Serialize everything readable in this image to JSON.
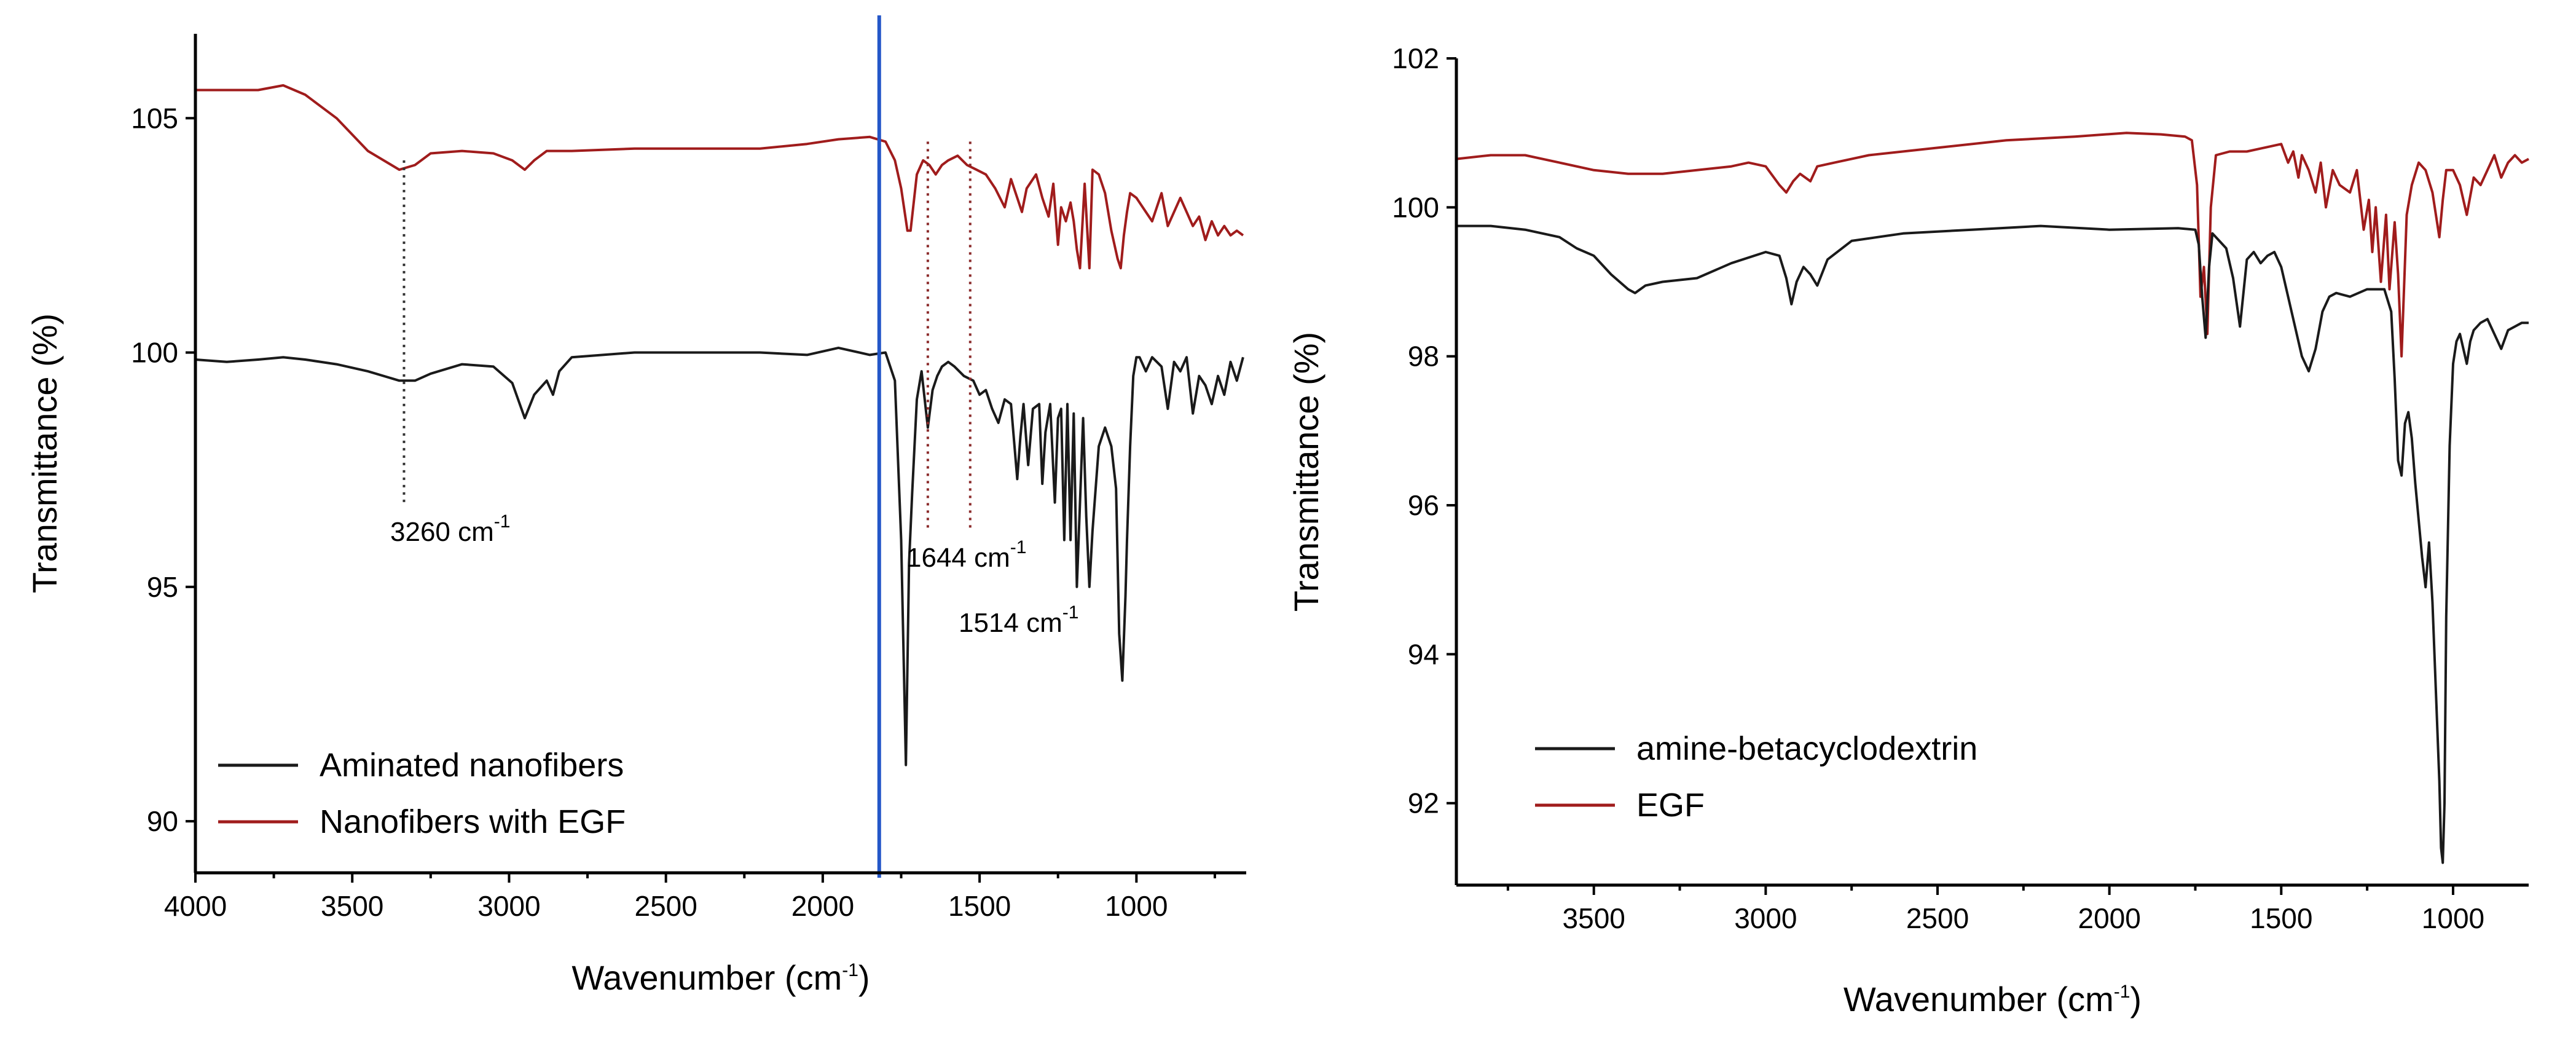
{
  "chart_data": [
    {
      "type": "line",
      "xlabel": "Wavenumber (cm",
      "xlabel_sup": "-1",
      "xlabel_tail": ")",
      "ylabel": "Transmittance (%)",
      "xlim": [
        4000,
        650
      ],
      "ylim": [
        88.9,
        106.8
      ],
      "x_ticks": [
        "4000",
        "3500",
        "3000",
        "2500",
        "2000",
        "1500",
        "1000"
      ],
      "y_ticks": [
        "90",
        "95",
        "100",
        "105"
      ],
      "legend_position": "bottom-left",
      "series": [
        {
          "name": "Nanofibers with EGF",
          "color": "#a01c1c",
          "x": [
            4000,
            3900,
            3800,
            3720,
            3650,
            3550,
            3450,
            3350,
            3300,
            3250,
            3150,
            3050,
            2990,
            2950,
            2920,
            2880,
            2800,
            2600,
            2400,
            2200,
            2050,
            1950,
            1850,
            1800,
            1770,
            1750,
            1730,
            1720,
            1700,
            1680,
            1660,
            1640,
            1620,
            1600,
            1570,
            1540,
            1510,
            1480,
            1450,
            1420,
            1400,
            1380,
            1365,
            1350,
            1320,
            1300,
            1280,
            1265,
            1250,
            1240,
            1225,
            1210,
            1200,
            1190,
            1180,
            1165,
            1150,
            1140,
            1120,
            1100,
            1080,
            1060,
            1050,
            1040,
            1030,
            1020,
            1000,
            980,
            950,
            920,
            900,
            880,
            860,
            840,
            820,
            800,
            780,
            760,
            740,
            720,
            700,
            680,
            660
          ],
          "y": [
            105.6,
            105.6,
            105.6,
            105.7,
            105.5,
            105.0,
            104.3,
            103.9,
            104.0,
            104.25,
            104.3,
            104.25,
            104.1,
            103.9,
            104.1,
            104.3,
            104.3,
            104.35,
            104.35,
            104.35,
            104.45,
            104.55,
            104.6,
            104.5,
            104.1,
            103.5,
            102.6,
            102.6,
            103.8,
            104.1,
            104.0,
            103.8,
            104.0,
            104.1,
            104.2,
            104.0,
            103.9,
            103.8,
            103.5,
            103.1,
            103.7,
            103.3,
            103.0,
            103.5,
            103.8,
            103.3,
            102.9,
            103.6,
            102.3,
            103.1,
            102.8,
            103.2,
            102.8,
            102.2,
            101.8,
            103.6,
            101.8,
            103.9,
            103.8,
            103.4,
            102.6,
            102.0,
            101.8,
            102.5,
            103.0,
            103.4,
            103.3,
            103.1,
            102.8,
            103.4,
            102.7,
            103.0,
            103.3,
            103.0,
            102.7,
            102.9,
            102.4,
            102.8,
            102.5,
            102.7,
            102.5,
            102.6,
            102.5
          ]
        },
        {
          "name": "Aminated nanofibers",
          "color": "#1a1a1a",
          "x": [
            4000,
            3900,
            3800,
            3720,
            3650,
            3550,
            3450,
            3350,
            3300,
            3250,
            3150,
            3050,
            2990,
            2950,
            2920,
            2880,
            2860,
            2840,
            2800,
            2600,
            2400,
            2200,
            2050,
            1950,
            1850,
            1800,
            1770,
            1750,
            1735,
            1725,
            1715,
            1700,
            1685,
            1665,
            1650,
            1635,
            1620,
            1600,
            1580,
            1550,
            1520,
            1500,
            1480,
            1460,
            1440,
            1420,
            1400,
            1380,
            1370,
            1360,
            1345,
            1330,
            1310,
            1300,
            1290,
            1275,
            1260,
            1250,
            1240,
            1230,
            1220,
            1210,
            1200,
            1190,
            1180,
            1170,
            1160,
            1150,
            1140,
            1120,
            1100,
            1080,
            1065,
            1055,
            1045,
            1035,
            1030,
            1020,
            1010,
            1000,
            990,
            970,
            950,
            920,
            900,
            880,
            860,
            840,
            820,
            800,
            780,
            760,
            740,
            720,
            700,
            680,
            660
          ],
          "y": [
            99.85,
            99.8,
            99.85,
            99.9,
            99.85,
            99.75,
            99.6,
            99.4,
            99.4,
            99.55,
            99.75,
            99.7,
            99.35,
            98.6,
            99.1,
            99.4,
            99.1,
            99.6,
            99.9,
            100.0,
            100.0,
            100.0,
            99.95,
            100.1,
            99.95,
            100.0,
            99.4,
            96.0,
            91.2,
            95.5,
            97.0,
            99.0,
            99.6,
            98.4,
            99.2,
            99.5,
            99.7,
            99.8,
            99.7,
            99.5,
            99.4,
            99.1,
            99.2,
            98.8,
            98.5,
            99.0,
            98.9,
            97.3,
            98.2,
            98.9,
            97.6,
            98.8,
            98.9,
            97.2,
            98.3,
            98.9,
            96.8,
            98.6,
            98.8,
            96.0,
            98.9,
            96.0,
            98.7,
            95.0,
            96.8,
            98.6,
            96.5,
            95.0,
            96.2,
            98.0,
            98.4,
            98.0,
            97.1,
            94.0,
            93.0,
            94.8,
            96.0,
            98.0,
            99.5,
            99.9,
            99.9,
            99.6,
            99.9,
            99.7,
            98.8,
            99.8,
            99.6,
            99.9,
            98.7,
            99.5,
            99.3,
            98.9,
            99.5,
            99.1,
            99.8,
            99.4,
            99.9
          ]
        }
      ],
      "legend": [
        {
          "label": "Aminated nanofibers",
          "color": "#1a1a1a"
        },
        {
          "label": "Nanofibers with EGF",
          "color": "#a01c1c"
        }
      ],
      "annotations": [
        {
          "text": "3260 cm",
          "sup": "-1",
          "x": 3335,
          "y_top": 104.1,
          "y_bottom": 96.8,
          "color": "#333333"
        },
        {
          "text": "1644 cm",
          "sup": "-1",
          "x": 1665,
          "y_top": 104.5,
          "y_bottom": 96.2,
          "color": "#8b2b2b"
        },
        {
          "text": "1514 cm",
          "sup": "-1",
          "x": 1530,
          "y_top": 104.5,
          "y_bottom": 96.2,
          "color": "#8b2b2b"
        }
      ],
      "divider": {
        "x": 1820,
        "color": "#2457c8"
      }
    },
    {
      "type": "line",
      "xlabel": "Wavenumber (cm",
      "xlabel_sup": "-1",
      "xlabel_tail": ")",
      "ylabel": "Transmittance (%)",
      "xlim": [
        3900,
        780
      ],
      "ylim": [
        90.9,
        102.0
      ],
      "x_ticks": [
        "3500",
        "3000",
        "2500",
        "2000",
        "1500",
        "1000"
      ],
      "y_ticks": [
        "92",
        "94",
        "96",
        "98",
        "100",
        "102"
      ],
      "legend_position": "bottom-left",
      "series": [
        {
          "name": "EGF",
          "color": "#a01c1c",
          "x": [
            3900,
            3800,
            3700,
            3600,
            3500,
            3400,
            3300,
            3200,
            3100,
            3050,
            3000,
            2960,
            2940,
            2920,
            2900,
            2870,
            2850,
            2800,
            2700,
            2500,
            2300,
            2100,
            1950,
            1850,
            1780,
            1760,
            1745,
            1735,
            1725,
            1715,
            1705,
            1690,
            1650,
            1600,
            1550,
            1500,
            1480,
            1465,
            1450,
            1440,
            1420,
            1400,
            1385,
            1370,
            1350,
            1330,
            1300,
            1280,
            1260,
            1245,
            1235,
            1225,
            1210,
            1195,
            1185,
            1170,
            1160,
            1150,
            1135,
            1120,
            1100,
            1080,
            1060,
            1040,
            1030,
            1020,
            1000,
            980,
            960,
            940,
            920,
            900,
            880,
            860,
            840,
            820,
            800,
            780
          ],
          "y": [
            100.65,
            100.7,
            100.7,
            100.6,
            100.5,
            100.45,
            100.45,
            100.5,
            100.55,
            100.6,
            100.55,
            100.3,
            100.2,
            100.35,
            100.45,
            100.35,
            100.55,
            100.6,
            100.7,
            100.8,
            100.9,
            100.95,
            101.0,
            100.98,
            100.95,
            100.9,
            100.3,
            98.8,
            99.2,
            98.3,
            100.0,
            100.7,
            100.75,
            100.75,
            100.8,
            100.85,
            100.6,
            100.75,
            100.4,
            100.7,
            100.5,
            100.2,
            100.6,
            100.0,
            100.5,
            100.3,
            100.2,
            100.5,
            99.7,
            100.1,
            99.4,
            100.0,
            99.0,
            99.9,
            98.9,
            99.8,
            99.1,
            98.0,
            99.9,
            100.3,
            100.6,
            100.5,
            100.2,
            99.6,
            100.1,
            100.5,
            100.5,
            100.3,
            99.9,
            100.4,
            100.3,
            100.5,
            100.7,
            100.4,
            100.6,
            100.7,
            100.6,
            100.65
          ]
        },
        {
          "name": "amine-betacyclodextrin",
          "color": "#1a1a1a",
          "x": [
            3900,
            3800,
            3700,
            3600,
            3550,
            3500,
            3450,
            3400,
            3380,
            3350,
            3300,
            3200,
            3100,
            3000,
            2960,
            2940,
            2925,
            2910,
            2890,
            2870,
            2850,
            2820,
            2750,
            2600,
            2400,
            2200,
            2000,
            1800,
            1750,
            1740,
            1730,
            1720,
            1710,
            1700,
            1680,
            1660,
            1640,
            1620,
            1600,
            1580,
            1560,
            1540,
            1520,
            1500,
            1480,
            1460,
            1440,
            1420,
            1400,
            1380,
            1360,
            1340,
            1300,
            1250,
            1200,
            1180,
            1170,
            1160,
            1150,
            1140,
            1130,
            1120,
            1110,
            1100,
            1090,
            1080,
            1070,
            1060,
            1050,
            1040,
            1035,
            1030,
            1025,
            1020,
            1010,
            1000,
            990,
            980,
            970,
            960,
            950,
            940,
            920,
            900,
            880,
            860,
            840,
            820,
            800,
            780
          ],
          "y": [
            99.75,
            99.75,
            99.7,
            99.6,
            99.45,
            99.35,
            99.1,
            98.9,
            98.85,
            98.95,
            99.0,
            99.05,
            99.25,
            99.4,
            99.35,
            99.05,
            98.7,
            99.0,
            99.2,
            99.1,
            98.95,
            99.3,
            99.55,
            99.65,
            99.7,
            99.75,
            99.7,
            99.72,
            99.7,
            99.5,
            98.8,
            98.25,
            99.2,
            99.65,
            99.55,
            99.45,
            99.05,
            98.4,
            99.3,
            99.4,
            99.25,
            99.35,
            99.4,
            99.2,
            98.8,
            98.4,
            98.0,
            97.8,
            98.1,
            98.6,
            98.8,
            98.85,
            98.8,
            98.9,
            98.9,
            98.6,
            97.7,
            96.6,
            96.4,
            97.1,
            97.25,
            96.9,
            96.3,
            95.8,
            95.3,
            94.9,
            95.5,
            94.7,
            93.5,
            92.3,
            91.4,
            91.2,
            92.0,
            94.5,
            96.8,
            97.9,
            98.2,
            98.3,
            98.1,
            97.9,
            98.2,
            98.35,
            98.45,
            98.5,
            98.3,
            98.1,
            98.35,
            98.4,
            98.45,
            98.45
          ]
        }
      ],
      "legend": [
        {
          "label": "amine-betacyclodextrin",
          "color": "#1a1a1a"
        },
        {
          "label": "EGF",
          "color": "#a01c1c"
        }
      ]
    }
  ]
}
